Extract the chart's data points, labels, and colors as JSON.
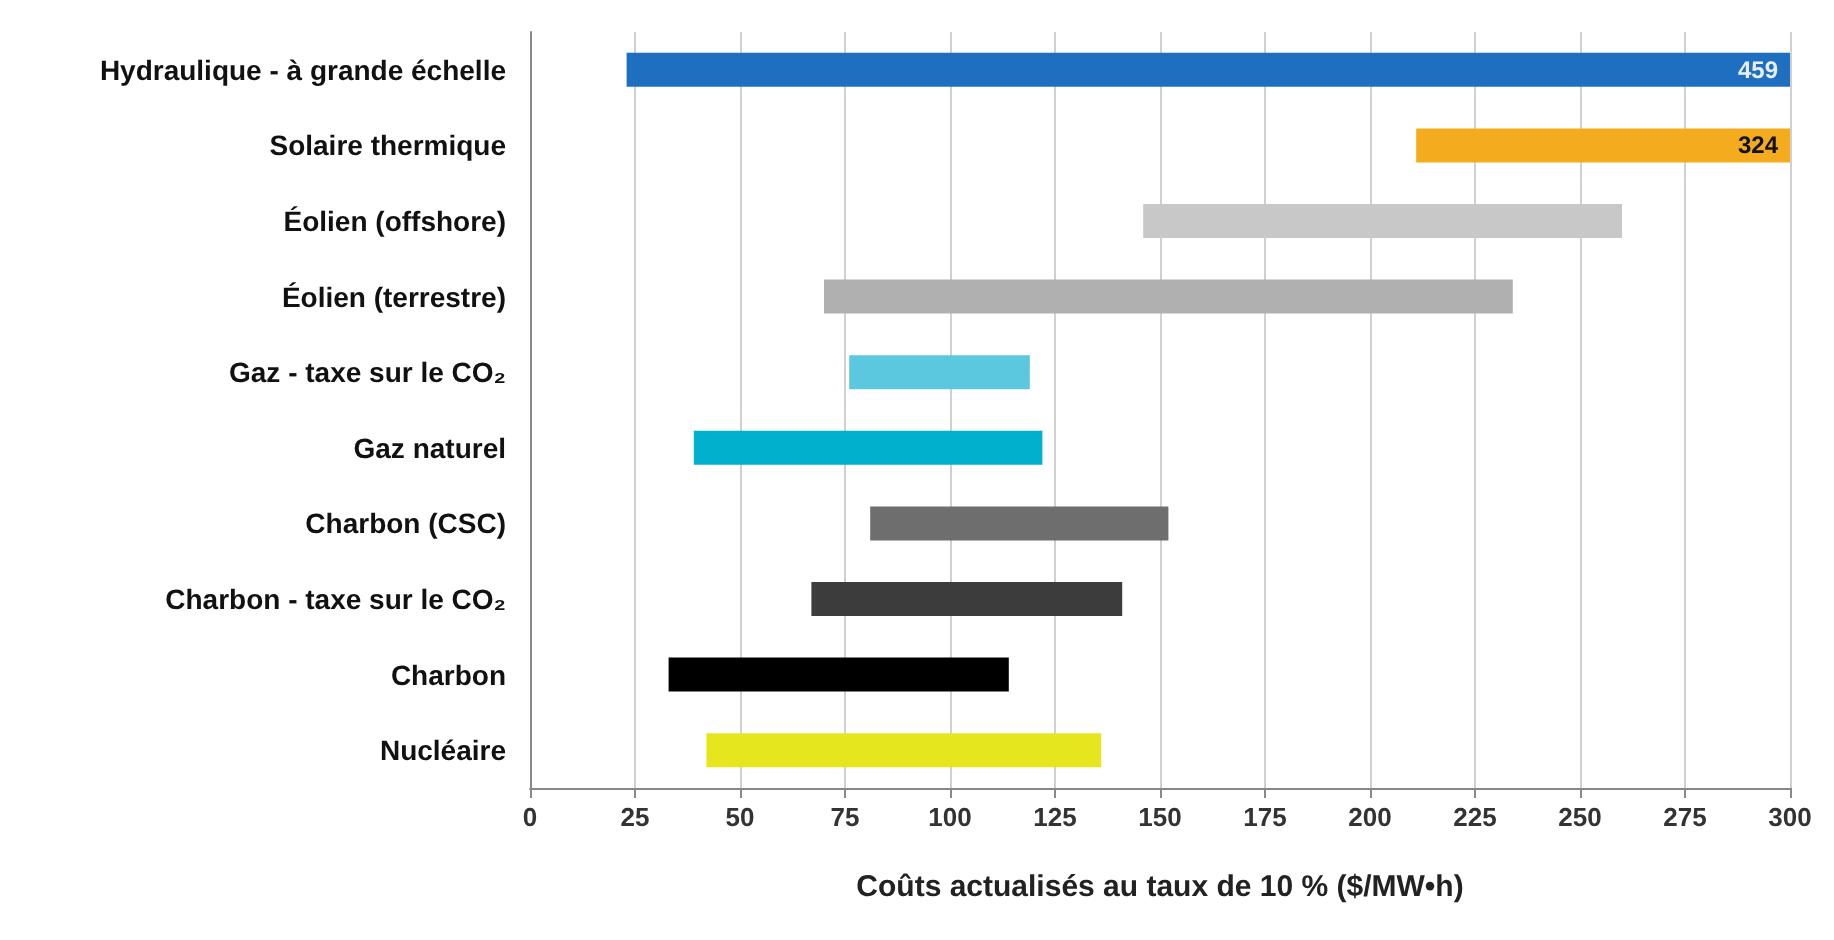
{
  "chart_data": {
    "type": "bar",
    "orientation": "horizontal",
    "xlabel": "Coûts actualisés au taux de 10 % ($/MW•h)",
    "categories": [
      "Hydraulique - à grande échelle",
      "Solaire thermique",
      "Éolien (offshore)",
      "Éolien (terrestre)",
      "Gaz - taxe sur le CO₂",
      "Gaz naturel",
      "Charbon (CSC)",
      "Charbon - taxe sur le CO₂",
      "Charbon",
      "Nucléaire"
    ],
    "base": [
      23,
      211,
      146,
      70,
      76,
      39,
      81,
      67,
      33,
      42
    ],
    "values": [
      277,
      89,
      114,
      164,
      43,
      83,
      71,
      74,
      81,
      94
    ],
    "colors": [
      "#1f6fc0",
      "#f5ab1e",
      "#c8c8c8",
      "#b0b0b0",
      "#5cc8e0",
      "#00b0cc",
      "#6e6e6e",
      "#3c3c3c",
      "#000000",
      "#e6e61e"
    ],
    "annotations": [
      {
        "text": "459",
        "x": 300,
        "y": "Hydraulique - à grande échelle"
      },
      {
        "text": "324",
        "x": 300,
        "y": "Solaire thermique"
      }
    ],
    "xlim": [
      0,
      300
    ],
    "xticks": [
      0,
      25,
      50,
      75,
      100,
      125,
      150,
      175,
      200,
      225,
      250,
      275,
      300
    ],
    "grid": "x"
  }
}
